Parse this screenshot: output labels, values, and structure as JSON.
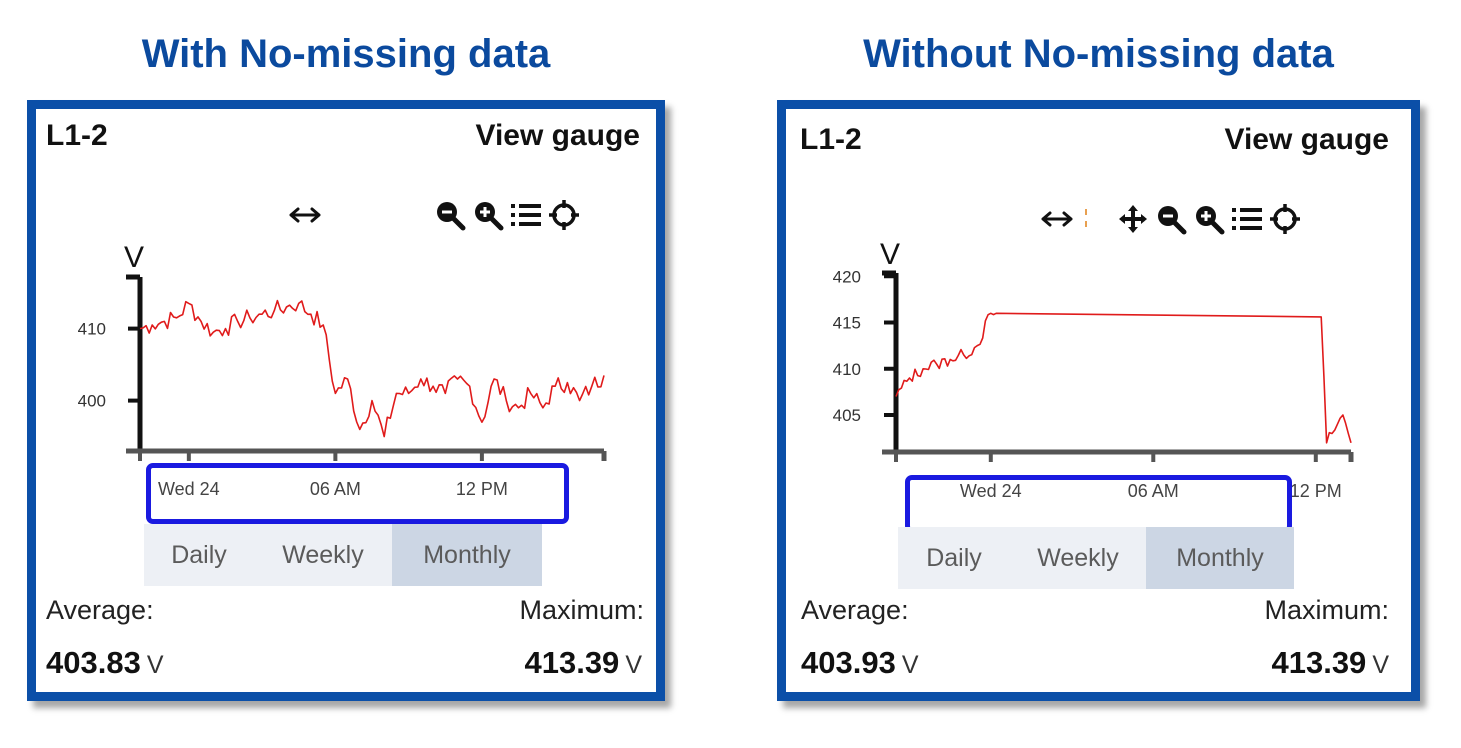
{
  "headings": {
    "left": "With No-missing data",
    "right": "Without No-missing data"
  },
  "panels": [
    {
      "title": "L1-2",
      "view_gauge": "View gauge",
      "tools": [
        "arrows-h-icon",
        "zoom-out-icon",
        "zoom-in-icon",
        "list-icon",
        "crosshair-icon"
      ],
      "tabs": [
        "Daily",
        "Weekly",
        "Monthly"
      ],
      "active_tab": "Monthly",
      "average_label": "Average:",
      "average_value": "403.83",
      "maximum_label": "Maximum:",
      "maximum_value": "413.39",
      "unit": "V"
    },
    {
      "title": "L1-2",
      "view_gauge": "View gauge",
      "tools": [
        "arrows-h-icon",
        "separator",
        "move-icon",
        "zoom-out-icon",
        "zoom-in-icon",
        "list-icon",
        "crosshair-icon"
      ],
      "tabs": [
        "Daily",
        "Weekly",
        "Monthly"
      ],
      "active_tab": "Monthly",
      "average_label": "Average:",
      "average_value": "403.93",
      "maximum_label": "Maximum:",
      "maximum_value": "413.39",
      "unit": "V"
    }
  ],
  "chart_data": [
    {
      "type": "line",
      "ylabel": "V",
      "ylim": [
        393,
        418
      ],
      "yticks": [
        400,
        410
      ],
      "xticks": [
        "Wed 24",
        "06 AM",
        "12 PM"
      ],
      "xrange_hours": [
        -2,
        17
      ],
      "line_color": "#e01b1b",
      "series": [
        {
          "x_hours": [
            -2.0,
            -1.5,
            -1.0,
            -0.5,
            0.0,
            0.5,
            1.0,
            1.5,
            2.0,
            2.5,
            3.0,
            3.5,
            4.0,
            4.5,
            5.0,
            5.5,
            6.0,
            6.5,
            7.0,
            7.5,
            8.0,
            8.5,
            9.0,
            9.5,
            10.0,
            10.5,
            11.0,
            11.5,
            12.0,
            12.5,
            13.0,
            13.5,
            14.0,
            14.5,
            15.0,
            15.5,
            16.0,
            16.5,
            17.0
          ],
          "values": [
            410,
            410.5,
            411,
            411.5,
            413.5,
            411,
            409.5,
            410,
            411,
            411.5,
            412,
            412.5,
            413,
            413.5,
            412,
            410.5,
            401,
            403,
            396,
            400,
            395,
            401,
            401,
            403,
            402,
            401,
            403,
            402,
            397,
            403,
            400,
            399,
            401,
            399,
            402,
            402.5,
            400,
            402,
            403.5
          ]
        }
      ]
    },
    {
      "type": "line",
      "ylabel": "V",
      "ylim": [
        401,
        421
      ],
      "yticks": [
        405,
        410,
        415,
        420
      ],
      "xticks": [
        "Wed 24",
        "06 AM",
        "12 PM"
      ],
      "xrange_hours": [
        -3.5,
        13.3
      ],
      "line_color": "#e01b1b",
      "series": [
        {
          "x_hours": [
            -3.5,
            -3.0,
            -2.5,
            -2.0,
            -1.5,
            -1.0,
            -0.5,
            0.0,
            0.2,
            12.2,
            12.4,
            12.6,
            13.0,
            13.3
          ],
          "values": [
            407,
            409,
            410,
            410.5,
            411,
            411.5,
            412.5,
            416,
            416,
            415.6,
            402,
            403,
            405,
            402
          ]
        }
      ]
    }
  ]
}
